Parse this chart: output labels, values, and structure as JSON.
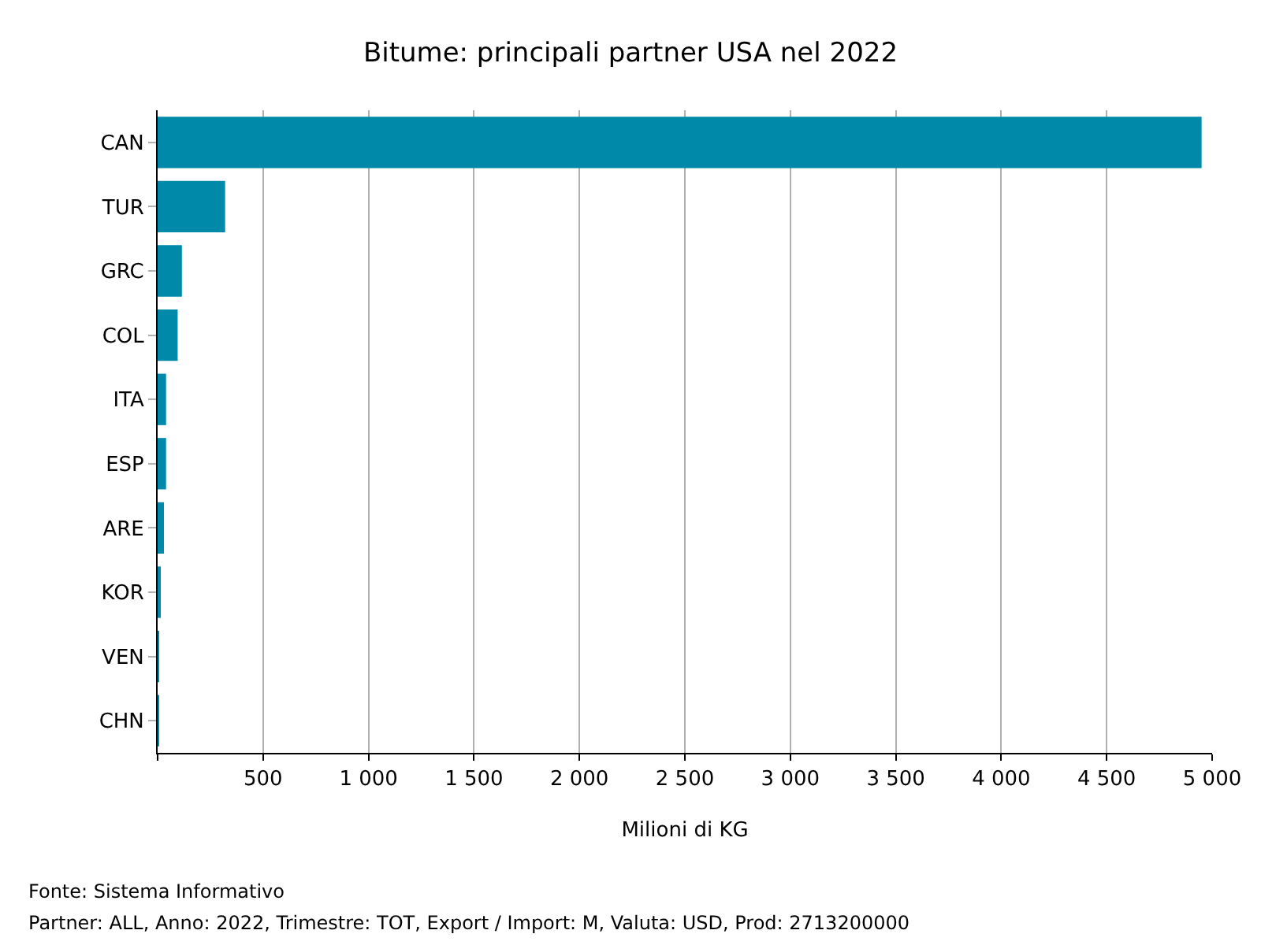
{
  "chart_data": {
    "type": "bar",
    "orientation": "horizontal",
    "title": "Bitume: principali partner USA nel 2022",
    "xlabel": "Milioni di KG",
    "categories": [
      "CAN",
      "TUR",
      "GRC",
      "COL",
      "ITA",
      "ESP",
      "ARE",
      "KOR",
      "VEN",
      "CHN"
    ],
    "values": [
      4950,
      320,
      115,
      95,
      40,
      40,
      30,
      15,
      3,
      1
    ],
    "color": "#0189aa",
    "xlim": [
      0,
      5000
    ],
    "xticks": [
      {
        "value": 0,
        "label": null
      },
      500,
      {
        "value": 1000,
        "label": "1 000"
      },
      {
        "value": 1500,
        "label": "1 500"
      },
      {
        "value": 2000,
        "label": "2 000"
      },
      {
        "value": 2500,
        "label": "2 500"
      },
      {
        "value": 3000,
        "label": "3 000"
      },
      {
        "value": 3500,
        "label": "3 500"
      },
      {
        "value": 4000,
        "label": "4 000"
      },
      {
        "value": 4500,
        "label": "4 500"
      },
      {
        "value": 5000,
        "label": "5 000"
      }
    ],
    "grid": "x",
    "annotations": [
      "Fonte: Sistema Informativo",
      "Partner: ALL, Anno: 2022, Trimestre: TOT, Export / Import: M, Valuta: USD, Prod: 2713200000"
    ]
  }
}
